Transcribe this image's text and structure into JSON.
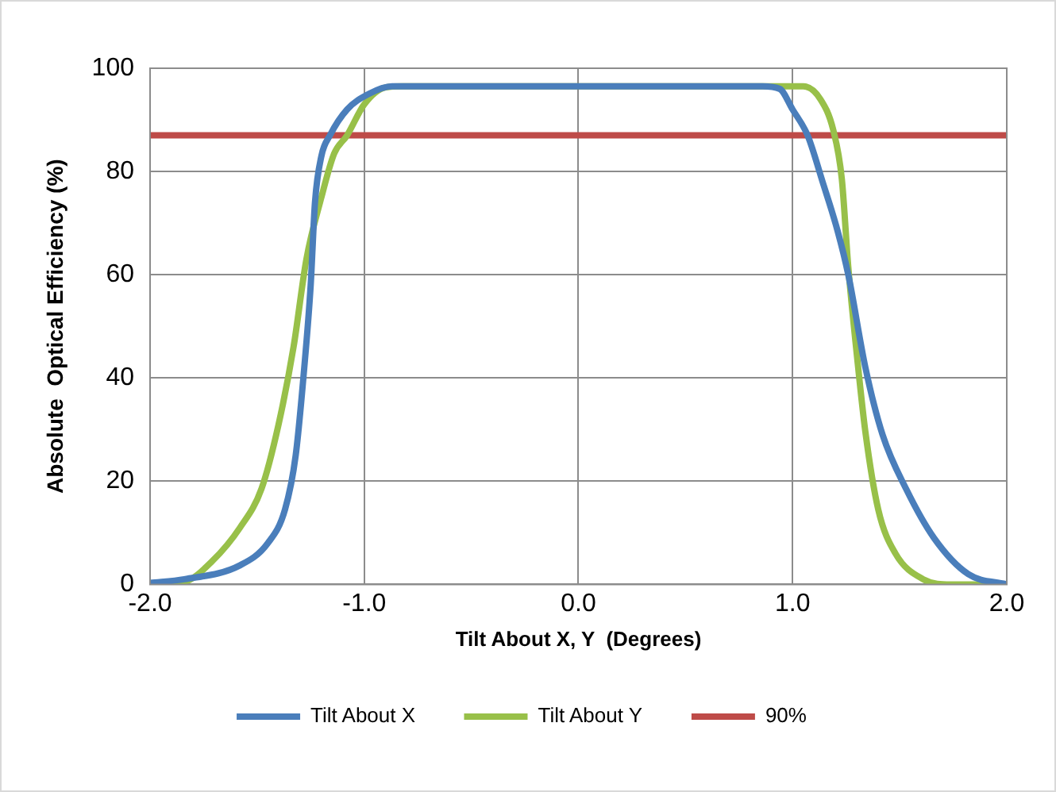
{
  "chart_data": {
    "type": "line",
    "xlabel": "Tilt About X, Y  (Degrees)",
    "ylabel": "Absolute  Optical Efficiency (%)",
    "xlim": [
      -2,
      2
    ],
    "xticks": [
      {
        "value": -2,
        "label": "-2.0"
      },
      {
        "value": -1,
        "label": "-1.0"
      },
      {
        "value": 0,
        "label": "0.0"
      },
      {
        "value": 1,
        "label": "1.0"
      },
      {
        "value": 2,
        "label": "2.0"
      }
    ],
    "ylim": [
      0,
      100
    ],
    "yticks": [
      0,
      20,
      40,
      60,
      80,
      100
    ],
    "grid": true,
    "legend": "bottom",
    "marker": "none",
    "line_style": "solid",
    "series": [
      {
        "name": "Tilt About X",
        "color": "#4a7ebb",
        "x": [
          -2,
          -1.84,
          -1.58,
          -1.45,
          -1.37,
          -1.32,
          -1.28,
          -1.25,
          -1.23,
          -1.2,
          -1.16,
          -1.08,
          -0.98,
          -0.87,
          0,
          0.86,
          0.94,
          1,
          1.07,
          1.14,
          1.21,
          1.26,
          1.34,
          1.42,
          1.53,
          1.66,
          1.82,
          2
        ],
        "values": [
          0.3,
          1,
          3.7,
          8,
          14.5,
          25,
          42,
          58,
          74,
          83,
          87,
          92,
          95,
          96.5,
          96.5,
          96.5,
          96,
          92,
          87,
          78,
          68.5,
          60,
          42,
          29,
          18.5,
          9,
          2,
          0
        ]
      },
      {
        "name": "Tilt About Y",
        "color": "#98c049",
        "x": [
          -2,
          -1.84,
          -1.71,
          -1.58,
          -1.48,
          -1.4,
          -1.33,
          -1.27,
          -1.2,
          -1.14,
          -1.08,
          -1,
          -0.9,
          -0.82,
          0,
          1.05,
          1.13,
          1.19,
          1.23,
          1.26,
          1.3,
          1.34,
          1.4,
          1.48,
          1.61,
          1.74,
          2
        ],
        "values": [
          0,
          0.5,
          4.5,
          11,
          18.5,
          31,
          46,
          63,
          75,
          83.5,
          87,
          93,
          96.3,
          96.5,
          96.5,
          96.5,
          94,
          88,
          78.5,
          61.5,
          44.5,
          29.5,
          14.5,
          6,
          1,
          0,
          0
        ]
      },
      {
        "name": "90%",
        "color": "#be4b48",
        "x": [
          -2,
          2
        ],
        "values": [
          87,
          87
        ]
      }
    ]
  }
}
